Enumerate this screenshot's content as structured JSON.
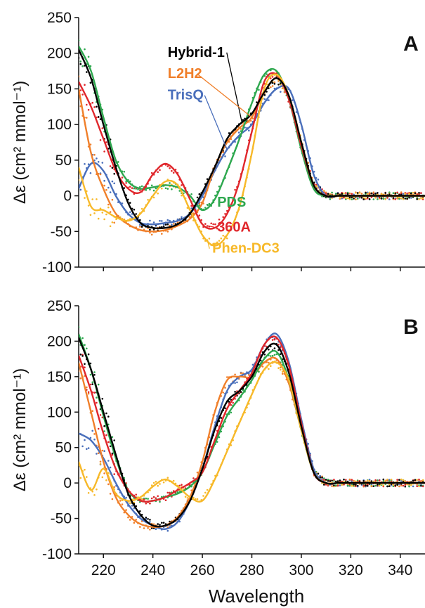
{
  "figure": {
    "xlabel": "Wavelength"
  },
  "colors": {
    "Hybrid-1": "#000000",
    "L2H2": "#f07f2a",
    "TrisQ": "#4a6fbb",
    "PDS": "#2ea84f",
    "360A": "#e0262b",
    "Phen-DC3": "#f7b92a"
  },
  "chart_data": [
    {
      "type": "line",
      "panel_label": "A",
      "ylabel": "Δε (cm² mmol⁻¹)",
      "xlabel": "",
      "xlim": [
        210,
        350
      ],
      "ylim": [
        -100,
        250
      ],
      "xticks": [
        220,
        240,
        260,
        280,
        300,
        320,
        340
      ],
      "yticks": [
        -100,
        -50,
        0,
        50,
        100,
        150,
        200,
        250
      ],
      "grid": false,
      "series": [
        {
          "name": "Hybrid-1",
          "x": [
            210,
            215,
            220,
            225,
            230,
            235,
            240,
            245,
            250,
            255,
            260,
            265,
            270,
            275,
            280,
            285,
            290,
            295,
            300,
            305,
            310,
            315,
            320,
            330,
            340,
            350
          ],
          "y": [
            205,
            165,
            100,
            40,
            -10,
            -38,
            -45,
            -45,
            -40,
            -25,
            5,
            40,
            80,
            100,
            115,
            145,
            165,
            140,
            75,
            15,
            0,
            0,
            0,
            0,
            0,
            0
          ]
        },
        {
          "name": "L2H2",
          "x": [
            210,
            215,
            220,
            225,
            230,
            235,
            240,
            245,
            250,
            255,
            260,
            265,
            270,
            275,
            280,
            285,
            290,
            295,
            300,
            305,
            310,
            315,
            320,
            330,
            340,
            350
          ],
          "y": [
            150,
            60,
            10,
            -25,
            -40,
            -48,
            -50,
            -48,
            -42,
            -32,
            -10,
            40,
            75,
            95,
            110,
            145,
            165,
            140,
            75,
            15,
            0,
            0,
            0,
            0,
            0,
            0
          ]
        },
        {
          "name": "TrisQ",
          "x": [
            210,
            215,
            220,
            225,
            230,
            235,
            240,
            245,
            250,
            255,
            260,
            265,
            270,
            275,
            280,
            285,
            290,
            295,
            300,
            305,
            310,
            315,
            320,
            330,
            340,
            350
          ],
          "y": [
            10,
            45,
            35,
            0,
            -25,
            -38,
            -40,
            -38,
            -35,
            -25,
            0,
            35,
            65,
            85,
            100,
            130,
            150,
            150,
            100,
            30,
            0,
            0,
            0,
            0,
            0,
            0
          ]
        },
        {
          "name": "PDS",
          "x": [
            210,
            215,
            220,
            225,
            230,
            235,
            240,
            245,
            250,
            255,
            260,
            265,
            270,
            275,
            280,
            285,
            290,
            295,
            300,
            305,
            310,
            315,
            320,
            330,
            340,
            350
          ],
          "y": [
            210,
            175,
            110,
            50,
            20,
            10,
            12,
            15,
            12,
            0,
            -20,
            -5,
            35,
            80,
            130,
            170,
            175,
            135,
            65,
            10,
            0,
            0,
            0,
            0,
            0,
            0
          ]
        },
        {
          "name": "360A",
          "x": [
            210,
            215,
            220,
            225,
            230,
            235,
            240,
            245,
            250,
            255,
            260,
            265,
            270,
            275,
            280,
            285,
            290,
            295,
            300,
            305,
            310,
            315,
            320,
            330,
            340,
            350
          ],
          "y": [
            160,
            125,
            80,
            35,
            10,
            5,
            30,
            45,
            30,
            -5,
            -40,
            -45,
            -25,
            20,
            90,
            160,
            170,
            135,
            70,
            15,
            0,
            0,
            0,
            0,
            0,
            0
          ]
        },
        {
          "name": "Phen-DC3",
          "x": [
            210,
            215,
            220,
            225,
            230,
            235,
            240,
            245,
            250,
            255,
            260,
            265,
            270,
            275,
            280,
            285,
            290,
            295,
            300,
            305,
            310,
            315,
            320,
            330,
            340,
            350
          ],
          "y": [
            40,
            -15,
            -20,
            -30,
            -35,
            -25,
            0,
            20,
            15,
            -20,
            -55,
            -70,
            -55,
            -15,
            60,
            150,
            170,
            140,
            75,
            15,
            0,
            0,
            0,
            0,
            0,
            0
          ]
        }
      ],
      "annotations": [
        {
          "text": "Hybrid-1",
          "series": "Hybrid-1"
        },
        {
          "text": "L2H2",
          "series": "L2H2"
        },
        {
          "text": "TrisQ",
          "series": "TrisQ"
        },
        {
          "text": "PDS",
          "series": "PDS"
        },
        {
          "text": "360A",
          "series": "360A"
        },
        {
          "text": "Phen-DC3",
          "series": "Phen-DC3"
        }
      ]
    },
    {
      "type": "line",
      "panel_label": "B",
      "ylabel": "Δε (cm² mmol⁻¹)",
      "xlabel": "Wavelength",
      "xlim": [
        210,
        350
      ],
      "ylim": [
        -100,
        250
      ],
      "xticks": [
        220,
        240,
        260,
        280,
        300,
        320,
        340
      ],
      "yticks": [
        -100,
        -50,
        0,
        50,
        100,
        150,
        200,
        250
      ],
      "grid": false,
      "series": [
        {
          "name": "Hybrid-1",
          "x": [
            210,
            215,
            220,
            225,
            230,
            235,
            240,
            245,
            250,
            255,
            260,
            265,
            270,
            275,
            280,
            285,
            290,
            295,
            300,
            305,
            310,
            315,
            320,
            330,
            340,
            350
          ],
          "y": [
            205,
            160,
            100,
            40,
            -15,
            -45,
            -60,
            -60,
            -50,
            -25,
            20,
            75,
            115,
            130,
            150,
            185,
            195,
            155,
            80,
            15,
            0,
            0,
            0,
            0,
            0,
            0
          ]
        },
        {
          "name": "L2H2",
          "x": [
            210,
            215,
            220,
            225,
            230,
            235,
            240,
            245,
            250,
            255,
            260,
            265,
            270,
            275,
            280,
            285,
            290,
            295,
            300,
            305,
            310,
            315,
            320,
            330,
            340,
            350
          ],
          "y": [
            170,
            100,
            30,
            -20,
            -45,
            -58,
            -62,
            -60,
            -48,
            -20,
            30,
            100,
            145,
            150,
            150,
            170,
            175,
            140,
            75,
            15,
            0,
            0,
            0,
            0,
            0,
            0
          ]
        },
        {
          "name": "TrisQ",
          "x": [
            210,
            215,
            220,
            225,
            230,
            235,
            240,
            245,
            250,
            255,
            260,
            265,
            270,
            275,
            280,
            285,
            290,
            295,
            300,
            305,
            310,
            315,
            320,
            330,
            340,
            350
          ],
          "y": [
            70,
            60,
            35,
            0,
            -30,
            -50,
            -60,
            -65,
            -55,
            -25,
            20,
            80,
            130,
            150,
            160,
            195,
            210,
            170,
            90,
            20,
            0,
            0,
            0,
            0,
            0,
            0
          ]
        },
        {
          "name": "PDS",
          "x": [
            210,
            215,
            220,
            225,
            230,
            235,
            240,
            245,
            250,
            255,
            260,
            265,
            270,
            275,
            280,
            285,
            290,
            295,
            300,
            305,
            310,
            315,
            320,
            330,
            340,
            350
          ],
          "y": [
            210,
            160,
            95,
            35,
            -10,
            -25,
            -25,
            -20,
            -15,
            -5,
            15,
            55,
            95,
            120,
            145,
            175,
            185,
            145,
            75,
            15,
            0,
            0,
            0,
            0,
            0,
            0
          ]
        },
        {
          "name": "360A",
          "x": [
            210,
            215,
            220,
            225,
            230,
            235,
            240,
            245,
            250,
            255,
            260,
            265,
            270,
            275,
            280,
            285,
            290,
            295,
            300,
            305,
            310,
            315,
            320,
            330,
            340,
            350
          ],
          "y": [
            180,
            130,
            70,
            20,
            -10,
            -25,
            -25,
            -20,
            -10,
            0,
            15,
            60,
            105,
            130,
            155,
            195,
            205,
            165,
            85,
            15,
            0,
            0,
            0,
            0,
            0,
            0
          ]
        },
        {
          "name": "Phen-DC3",
          "x": [
            210,
            215,
            220,
            225,
            230,
            235,
            240,
            245,
            250,
            255,
            260,
            265,
            270,
            275,
            280,
            285,
            290,
            295,
            300,
            305,
            310,
            315,
            320,
            330,
            340,
            350
          ],
          "y": [
            30,
            -10,
            20,
            -15,
            -25,
            -20,
            -5,
            5,
            -5,
            -20,
            -25,
            5,
            45,
            85,
            125,
            160,
            170,
            145,
            75,
            15,
            0,
            0,
            0,
            0,
            0,
            0
          ]
        }
      ]
    }
  ]
}
